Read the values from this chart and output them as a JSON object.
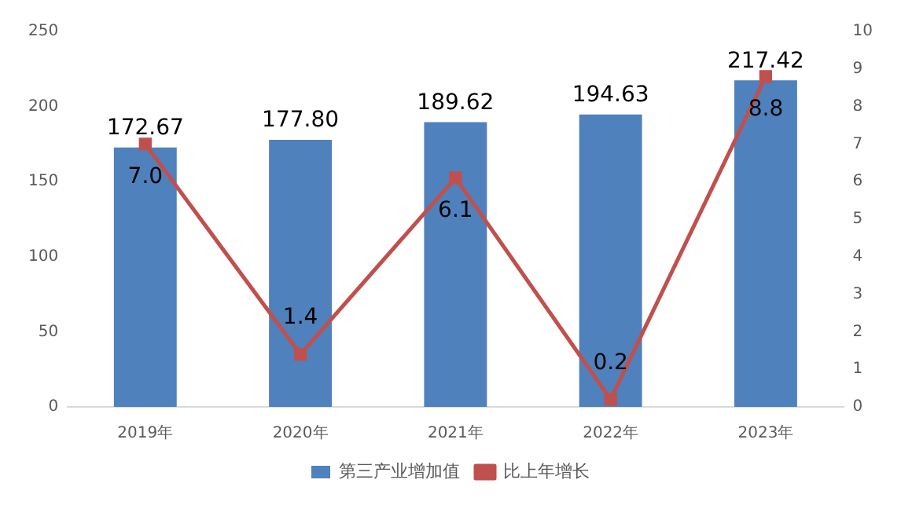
{
  "chart_data": {
    "type": "bar",
    "categories": [
      "2019年",
      "2020年",
      "2021年",
      "2022年",
      "2023年"
    ],
    "series": [
      {
        "name": "第三产业增加值",
        "color": "#4f81bd",
        "values": [
          172.67,
          177.8,
          189.62,
          194.63,
          217.42
        ],
        "value_labels": [
          "172.67",
          "177.80",
          "189.62",
          "194.63",
          "217.42"
        ]
      },
      {
        "name": "比上年增长",
        "type": "line",
        "axis": "y2",
        "color": "#c0504d",
        "marker": "square",
        "values": [
          7.0,
          1.4,
          6.1,
          0.2,
          8.8
        ],
        "value_labels": [
          "7.0",
          "1.4",
          "6.1",
          "0.2",
          "8.8"
        ]
      }
    ],
    "ylim": [
      0,
      250
    ],
    "yticks": [
      0,
      50,
      100,
      150,
      200,
      250
    ],
    "y2lim": [
      0,
      10
    ],
    "y2ticks": [
      0,
      1,
      2,
      3,
      4,
      5,
      6,
      7,
      8,
      9,
      10
    ],
    "grid": false,
    "legend": "bottom"
  }
}
